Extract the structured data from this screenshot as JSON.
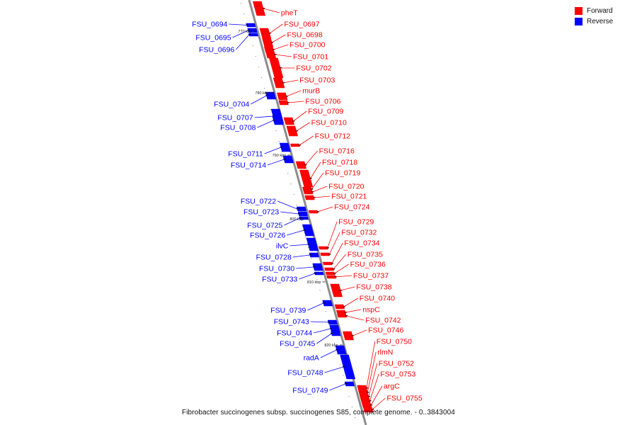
{
  "legend": {
    "forward_label": "Forward",
    "reverse_label": "Reverse",
    "forward_color": "#ff0000",
    "reverse_color": "#0000ff"
  },
  "caption": "Fibrobacter succinogenes subsp. succinogenes S85, complete genome. - 0..3843004",
  "kbp_markers": [
    "770 kbp",
    "780 kbp",
    "790 kbp",
    "800 kbp",
    "810 kbp",
    "820 kbp"
  ],
  "forward_genes": [
    "pheT",
    "FSU_0697",
    "FSU_0698",
    "FSU_0700",
    "FSU_0701",
    "FSU_0702",
    "FSU_0703",
    "murB",
    "FSU_0706",
    "FSU_0709",
    "FSU_0710",
    "FSU_0712",
    "FSU_0716",
    "FSU_0718",
    "FSU_0719",
    "FSU_0720",
    "FSU_0721",
    "FSU_0724",
    "FSU_0729",
    "FSU_0732",
    "FSU_0734",
    "FSU_0735",
    "FSU_0736",
    "FSU_0737",
    "FSU_0738",
    "FSU_0740",
    "nspC",
    "FSU_0742",
    "FSU_0746",
    "FSU_0750",
    "rlmN",
    "FSU_0752",
    "FSU_0753",
    "argC",
    "FSU_0755"
  ],
  "reverse_genes": [
    "FSU_0694",
    "FSU_0695",
    "FSU_0696",
    "FSU_0704",
    "FSU_0707",
    "FSU_0708",
    "FSU_0711",
    "FSU_0714",
    "FSU_0722",
    "FSU_0723",
    "FSU_0725",
    "FSU_0726",
    "ilvC",
    "FSU_0728",
    "FSU_0730",
    "FSU_0733",
    "FSU_0739",
    "FSU_0743",
    "FSU_0744",
    "FSU_0745",
    "radA",
    "FSU_0748",
    "FSU_0749"
  ]
}
